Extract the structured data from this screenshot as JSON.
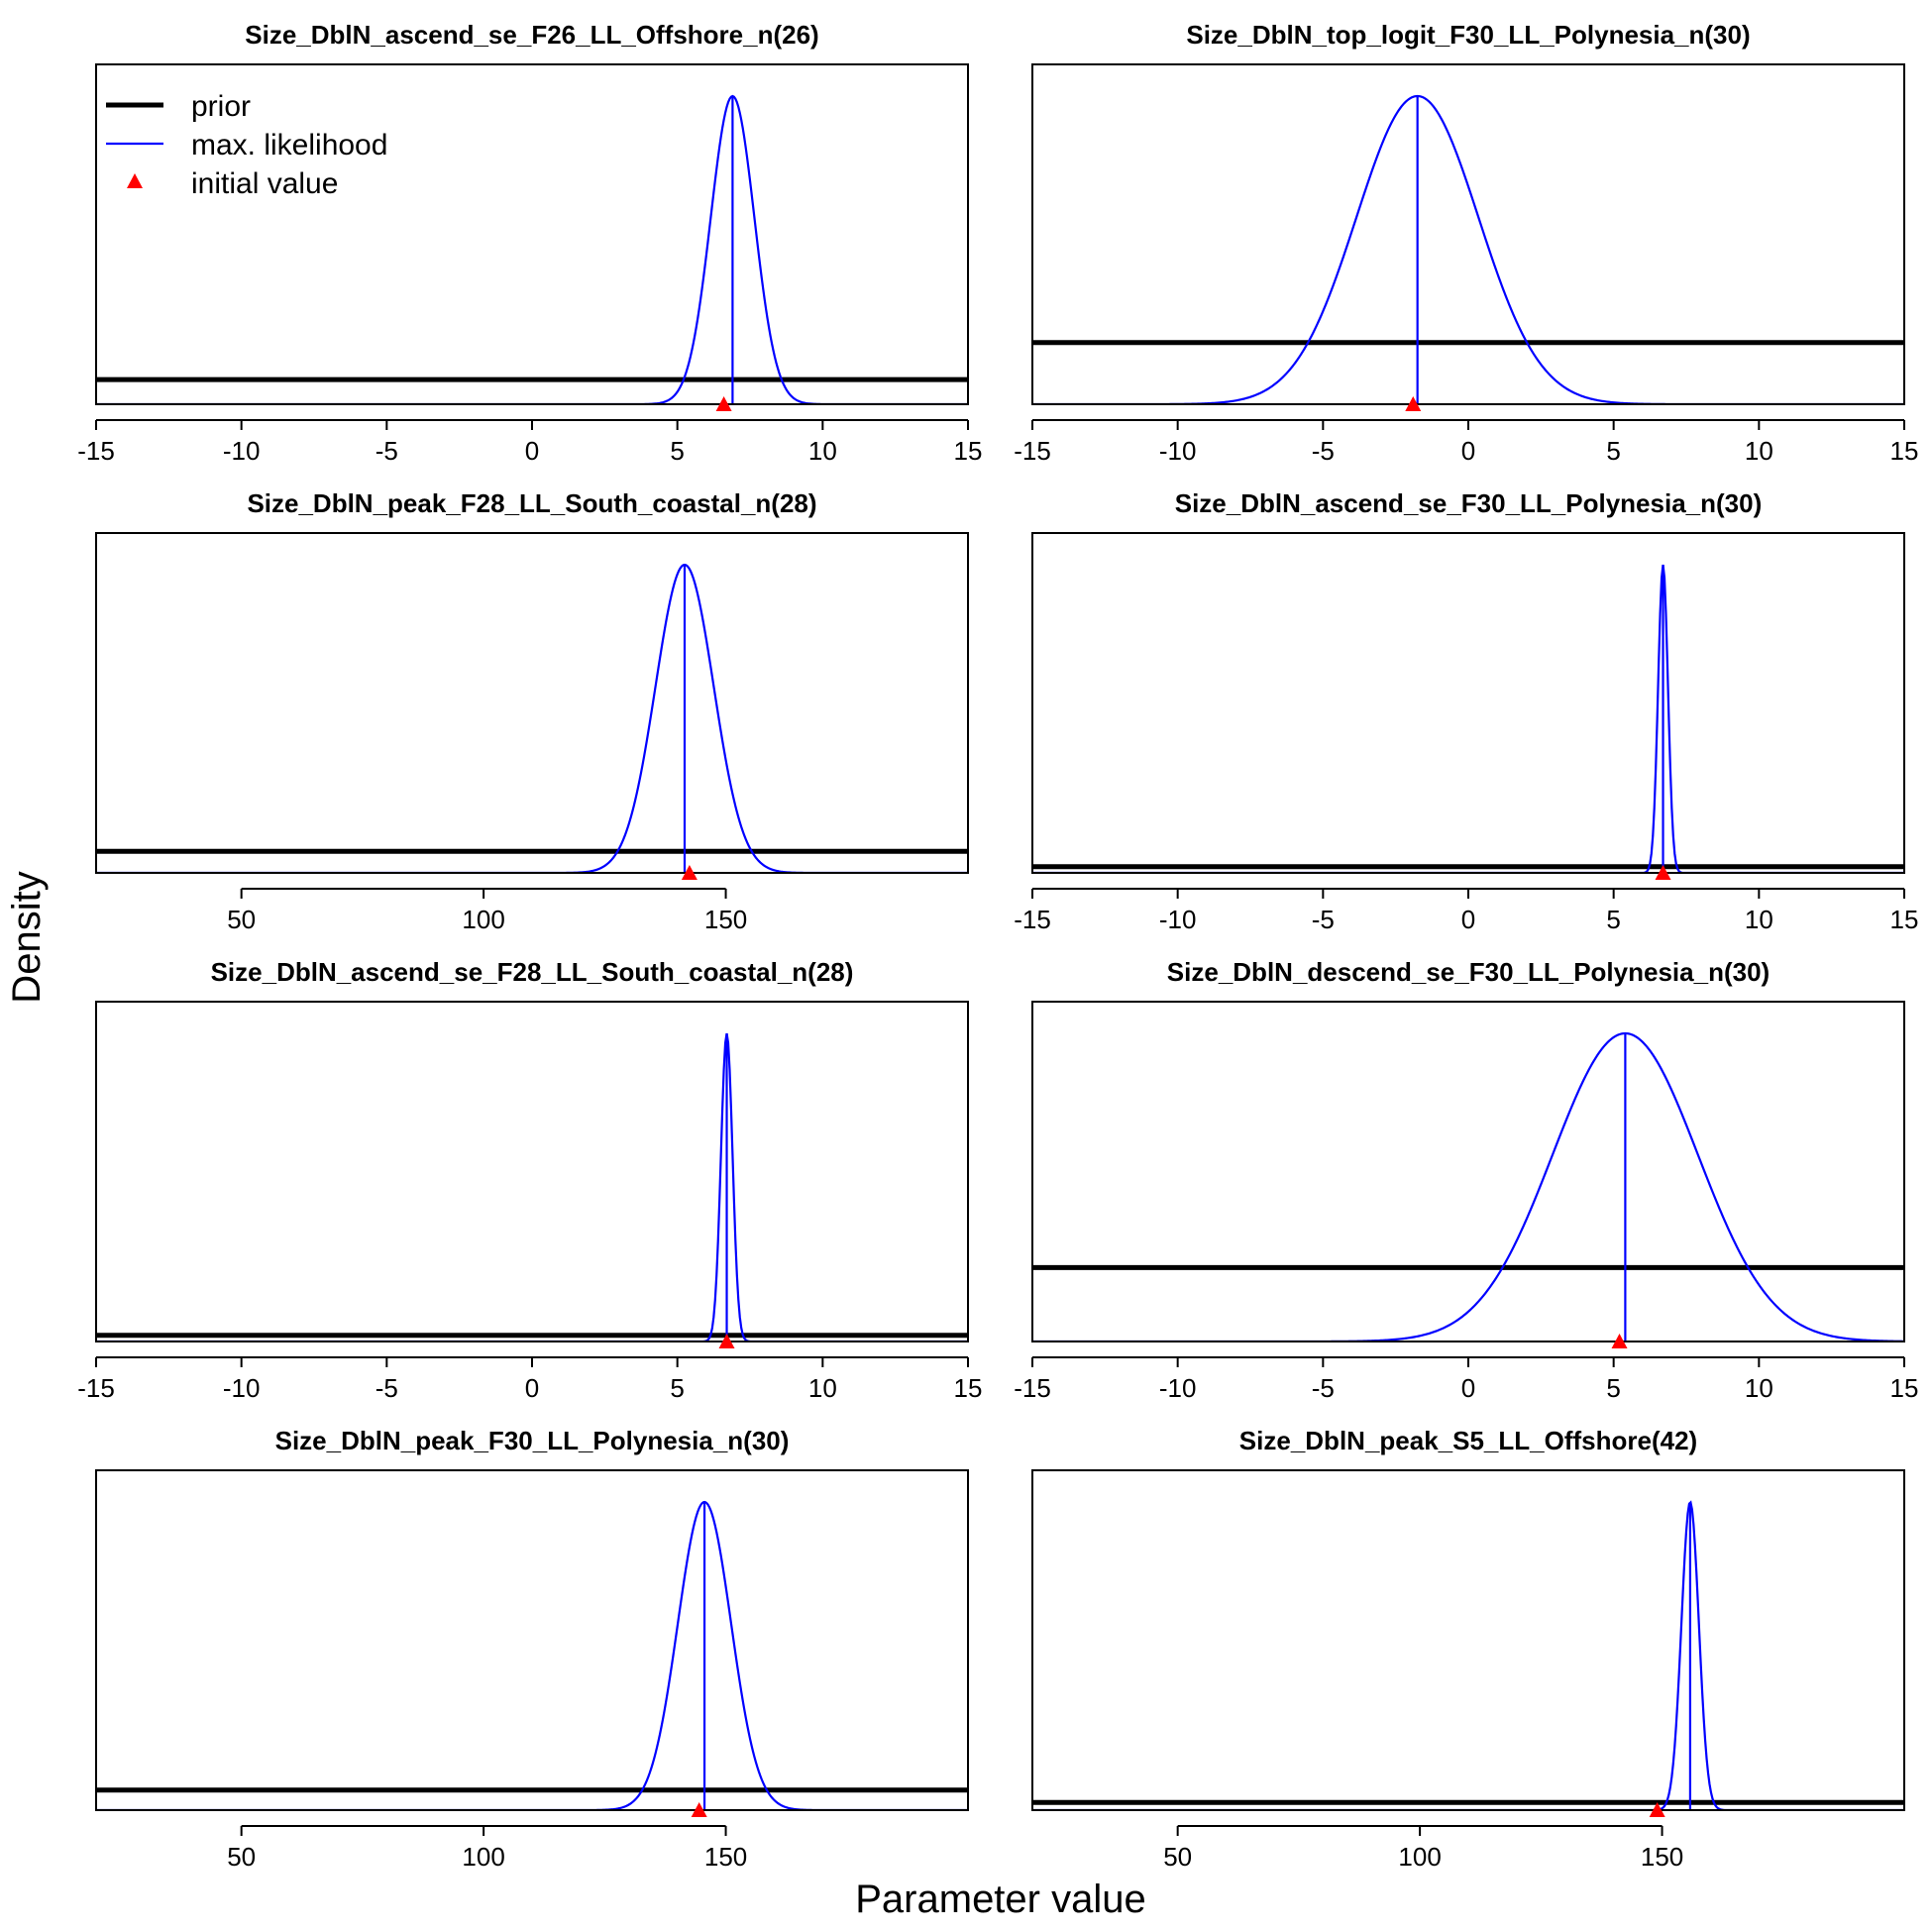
{
  "figure": {
    "ylabel": "Density",
    "xlabel": "Parameter value",
    "legend": {
      "placement": "top-left of first panel",
      "items": [
        "prior",
        "max. likelihood",
        "initial value"
      ]
    },
    "colors": {
      "prior": "#000000",
      "likelihood": "#0000FF",
      "initial": "#FF0000"
    }
  },
  "chart_data": [
    {
      "type": "line",
      "title": "Size_DblN_ascend_se_F26_LL_Offshore_n(26)",
      "xlim": [
        -15,
        15
      ],
      "ticks": [
        "-15",
        "-10",
        "-5",
        "0",
        "5",
        "10",
        "15"
      ],
      "prior_density": 0.08,
      "mle": 6.9,
      "sd": 0.75,
      "initial": 6.6,
      "legend": true
    },
    {
      "type": "line",
      "title": "Size_DblN_top_logit_F30_LL_Polynesia_n(30)",
      "xlim": [
        -15,
        15
      ],
      "ticks": [
        "-15",
        "-10",
        "-5",
        "0",
        "5",
        "10",
        "15"
      ],
      "prior_density": 0.2,
      "mle": -1.75,
      "sd": 2.1,
      "initial": -1.9
    },
    {
      "type": "line",
      "title": "Size_DblN_peak_F28_LL_South_coastal_n(28)",
      "xlim": [
        20,
        200
      ],
      "ticks": [
        "50",
        "100",
        "150"
      ],
      "prior_density": 0.07,
      "mle": 141.5,
      "sd": 6.0,
      "initial": 142.5
    },
    {
      "type": "line",
      "title": "Size_DblN_ascend_se_F30_LL_Polynesia_n(30)",
      "xlim": [
        -15,
        15
      ],
      "ticks": [
        "-15",
        "-10",
        "-5",
        "0",
        "5",
        "10",
        "15"
      ],
      "prior_density": 0.02,
      "mle": 6.7,
      "sd": 0.17,
      "initial": 6.7
    },
    {
      "type": "line",
      "title": "Size_DblN_ascend_se_F28_LL_South_coastal_n(28)",
      "xlim": [
        -15,
        15
      ],
      "ticks": [
        "-15",
        "-10",
        "-5",
        "0",
        "5",
        "10",
        "15"
      ],
      "prior_density": 0.02,
      "mle": 6.7,
      "sd": 0.2,
      "initial": 6.7
    },
    {
      "type": "line",
      "title": "Size_DblN_descend_se_F30_LL_Polynesia_n(30)",
      "xlim": [
        -15,
        15
      ],
      "ticks": [
        "-15",
        "-10",
        "-5",
        "0",
        "5",
        "10",
        "15"
      ],
      "prior_density": 0.24,
      "mle": 5.4,
      "sd": 2.5,
      "initial": 5.2
    },
    {
      "type": "line",
      "title": "Size_DblN_peak_F30_LL_Polynesia_n(30)",
      "xlim": [
        20,
        200
      ],
      "ticks": [
        "50",
        "100",
        "150"
      ],
      "prior_density": 0.065,
      "mle": 145.6,
      "sd": 5.5,
      "initial": 144.5
    },
    {
      "type": "line",
      "title": "Size_DblN_peak_S5_LL_Offshore(42)",
      "xlim": [
        20,
        200
      ],
      "ticks": [
        "50",
        "100",
        "150"
      ],
      "prior_density": 0.025,
      "mle": 155.8,
      "sd": 1.8,
      "initial": 149.0
    }
  ]
}
